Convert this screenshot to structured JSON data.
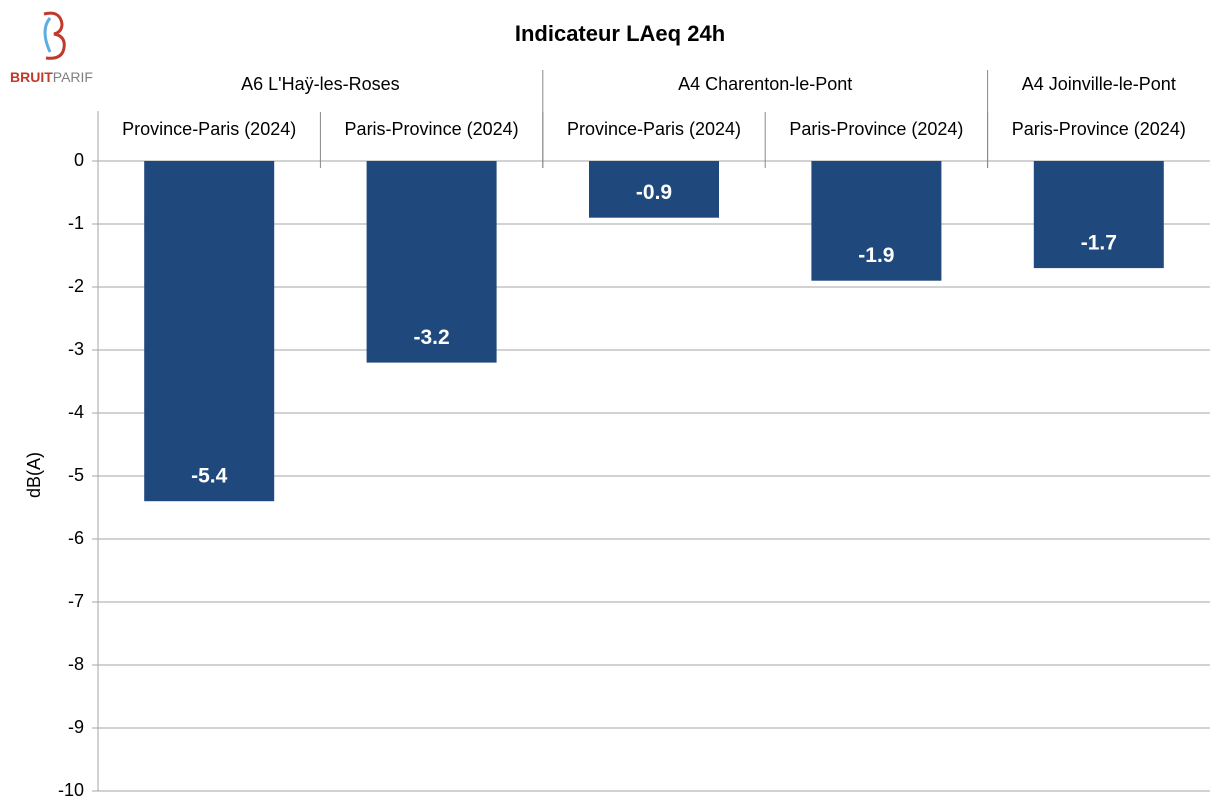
{
  "chart_data": {
    "type": "bar",
    "title": "Indicateur LAeq 24h",
    "logo": [
      "BRUIT",
      "PARIF"
    ],
    "y_label": "dB(A)",
    "groups": [
      {
        "label": "A6 L'Haÿ-les-Roses",
        "count": 2
      },
      {
        "label": "A4 Charenton-le-Pont",
        "count": 2
      },
      {
        "label": "A4 Joinville-le-Pont",
        "count": 1
      }
    ],
    "categories": [
      "Province-Paris (2024)",
      "Paris-Province (2024)",
      "Province-Paris (2024)",
      "Paris-Province (2024)",
      "Paris-Province (2024)"
    ],
    "values": [
      -5.4,
      -3.2,
      -0.9,
      -1.9,
      -1.7
    ],
    "color": "#1f497d",
    "ylim": [
      -10,
      0
    ],
    "yticks": [
      0,
      -1,
      -2,
      -3,
      -4,
      -5,
      -6,
      -7,
      -8,
      -9,
      -10
    ],
    "grid": true
  }
}
